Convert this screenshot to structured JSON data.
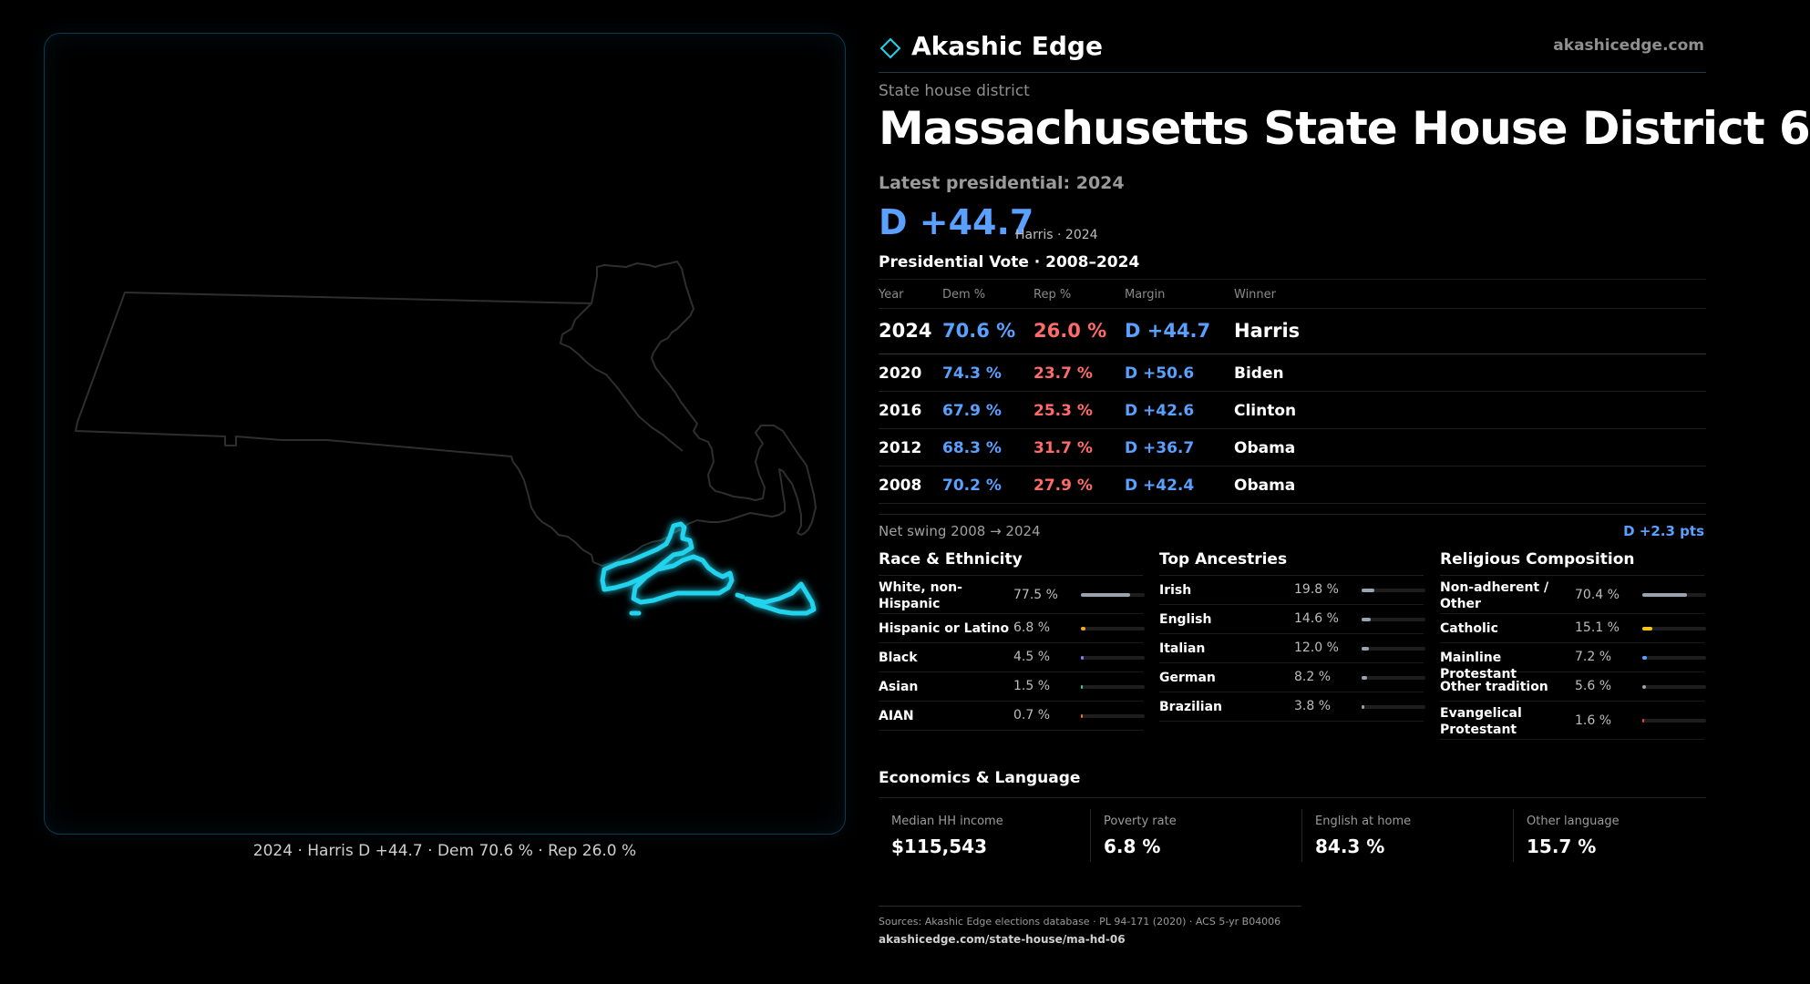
{
  "brand": {
    "name": "Akashic Edge",
    "url": "akashicedge.com"
  },
  "district": {
    "kind": "State house district",
    "title": "Massachusetts State House District 6"
  },
  "latest": {
    "label": "Latest presidential: 2024",
    "margin": "D +44.7",
    "sub": "Harris · 2024"
  },
  "map": {
    "caption": "2024 · Harris D +44.7 · Dem 70.6 % · Rep 26.0 %",
    "state_outline_color": "#2e2e2e",
    "district_color": "#22d3ee"
  },
  "presidential": {
    "heading": "Presidential Vote · 2008–2024",
    "columns": [
      "Year",
      "Dem %",
      "Rep %",
      "Margin",
      "Winner"
    ],
    "rows": [
      {
        "year": "2024",
        "dem": "70.6 %",
        "rep": "26.0 %",
        "margin": "D +44.7",
        "winner": "Harris"
      },
      {
        "year": "2020",
        "dem": "74.3 %",
        "rep": "23.7 %",
        "margin": "D +50.6",
        "winner": "Biden"
      },
      {
        "year": "2016",
        "dem": "67.9 %",
        "rep": "25.3 %",
        "margin": "D +42.6",
        "winner": "Clinton"
      },
      {
        "year": "2012",
        "dem": "68.3 %",
        "rep": "31.7 %",
        "margin": "D +36.7",
        "winner": "Obama"
      },
      {
        "year": "2008",
        "dem": "70.2 %",
        "rep": "27.9 %",
        "margin": "D +42.4",
        "winner": "Obama"
      }
    ],
    "swing_label": "Net swing 2008 → 2024",
    "swing_value": "D +2.3 pts"
  },
  "race": {
    "title": "Race & Ethnicity",
    "items": [
      {
        "label": "White, non-Hispanic",
        "pct": "77.5 %",
        "value": 77.5,
        "color": "#9aa3b2"
      },
      {
        "label": "Hispanic or Latino",
        "pct": "6.8 %",
        "value": 6.8,
        "color": "#f5a524"
      },
      {
        "label": "Black",
        "pct": "4.5 %",
        "value": 4.5,
        "color": "#8b7cf6"
      },
      {
        "label": "Asian",
        "pct": "1.5 %",
        "value": 1.5,
        "color": "#34d399"
      },
      {
        "label": "AIAN",
        "pct": "0.7 %",
        "value": 0.7,
        "color": "#f97316"
      }
    ]
  },
  "ancestry": {
    "title": "Top Ancestries",
    "items": [
      {
        "label": "Irish",
        "pct": "19.8 %",
        "value": 19.8,
        "color": "#9aa3b2"
      },
      {
        "label": "English",
        "pct": "14.6 %",
        "value": 14.6,
        "color": "#9aa3b2"
      },
      {
        "label": "Italian",
        "pct": "12.0 %",
        "value": 12.0,
        "color": "#9aa3b2"
      },
      {
        "label": "German",
        "pct": "8.2 %",
        "value": 8.2,
        "color": "#9aa3b2"
      },
      {
        "label": "Brazilian",
        "pct": "3.8 %",
        "value": 3.8,
        "color": "#9aa3b2"
      }
    ]
  },
  "religion": {
    "title": "Religious Composition",
    "items": [
      {
        "label": "Non-adherent / Other",
        "pct": "70.4 %",
        "value": 70.4,
        "color": "#9aa3b2"
      },
      {
        "label": "Catholic",
        "pct": "15.1 %",
        "value": 15.1,
        "color": "#f5c518"
      },
      {
        "label": "Mainline Protestant",
        "pct": "7.2 %",
        "value": 7.2,
        "color": "#5aa0ff"
      },
      {
        "label": "Other tradition",
        "pct": "5.6 %",
        "value": 5.6,
        "color": "#9aa3b2"
      },
      {
        "label": "Evangelical Protestant",
        "pct": "1.6 %",
        "value": 1.6,
        "color": "#ef4444"
      }
    ]
  },
  "economics": {
    "title": "Economics & Language",
    "items": [
      {
        "label": "Median HH income",
        "value": "$115,543"
      },
      {
        "label": "Poverty rate",
        "value": "6.8 %"
      },
      {
        "label": "English at home",
        "value": "84.3 %"
      },
      {
        "label": "Other language",
        "value": "15.7 %"
      }
    ]
  },
  "sources": {
    "text": "Sources: Akashic Edge elections database · PL 94-171 (2020) · ACS 5-yr B04006",
    "url": "akashicedge.com/state-house/ma-hd-06"
  }
}
